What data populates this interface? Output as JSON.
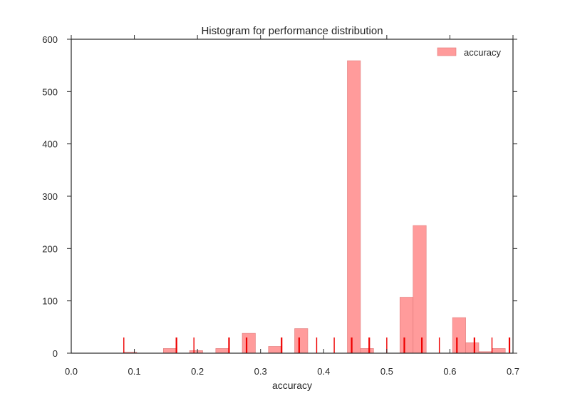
{
  "chart_data": {
    "type": "bar",
    "title": "Histogram for performance distribution",
    "xlabel": "accuracy",
    "ylabel": "",
    "xlim": [
      0.0,
      0.7
    ],
    "ylim": [
      0,
      600
    ],
    "xticks": [
      "0.0",
      "0.1",
      "0.2",
      "0.3",
      "0.4",
      "0.5",
      "0.6",
      "0.7"
    ],
    "yticks": [
      "0",
      "100",
      "200",
      "300",
      "400",
      "500",
      "600"
    ],
    "grid": false,
    "legend": {
      "position": "top-right",
      "entries": [
        "accuracy"
      ]
    },
    "bar_color": "#ff9b9b",
    "bar_edge_color": "#e07878",
    "rug_color": "#ee0000",
    "series": [
      {
        "name": "accuracy",
        "bin_width": 0.0208,
        "bins": [
          {
            "x0": 0.083,
            "value": 2
          },
          {
            "x0": 0.146,
            "value": 9
          },
          {
            "x0": 0.1875,
            "value": 5
          },
          {
            "x0": 0.229,
            "value": 9
          },
          {
            "x0": 0.271,
            "value": 38
          },
          {
            "x0": 0.3125,
            "value": 13
          },
          {
            "x0": 0.354,
            "value": 47
          },
          {
            "x0": 0.4375,
            "value": 559
          },
          {
            "x0": 0.4583,
            "value": 9
          },
          {
            "x0": 0.5208,
            "value": 107
          },
          {
            "x0": 0.5417,
            "value": 244
          },
          {
            "x0": 0.6042,
            "value": 68
          },
          {
            "x0": 0.625,
            "value": 20
          },
          {
            "x0": 0.646,
            "value": 3
          },
          {
            "x0": 0.667,
            "value": 9
          }
        ]
      }
    ],
    "rug": [
      {
        "x": 0.0833,
        "bold": false
      },
      {
        "x": 0.1667,
        "bold": true
      },
      {
        "x": 0.1944,
        "bold": false
      },
      {
        "x": 0.25,
        "bold": true
      },
      {
        "x": 0.2778,
        "bold": true
      },
      {
        "x": 0.3333,
        "bold": true
      },
      {
        "x": 0.3611,
        "bold": true
      },
      {
        "x": 0.3889,
        "bold": false
      },
      {
        "x": 0.4167,
        "bold": false
      },
      {
        "x": 0.4444,
        "bold": true
      },
      {
        "x": 0.4722,
        "bold": true
      },
      {
        "x": 0.5,
        "bold": false
      },
      {
        "x": 0.5278,
        "bold": true
      },
      {
        "x": 0.5556,
        "bold": true
      },
      {
        "x": 0.5833,
        "bold": false
      },
      {
        "x": 0.6111,
        "bold": true
      },
      {
        "x": 0.6389,
        "bold": true
      },
      {
        "x": 0.6667,
        "bold": false
      },
      {
        "x": 0.6944,
        "bold": true
      }
    ],
    "rug_height": 30
  }
}
